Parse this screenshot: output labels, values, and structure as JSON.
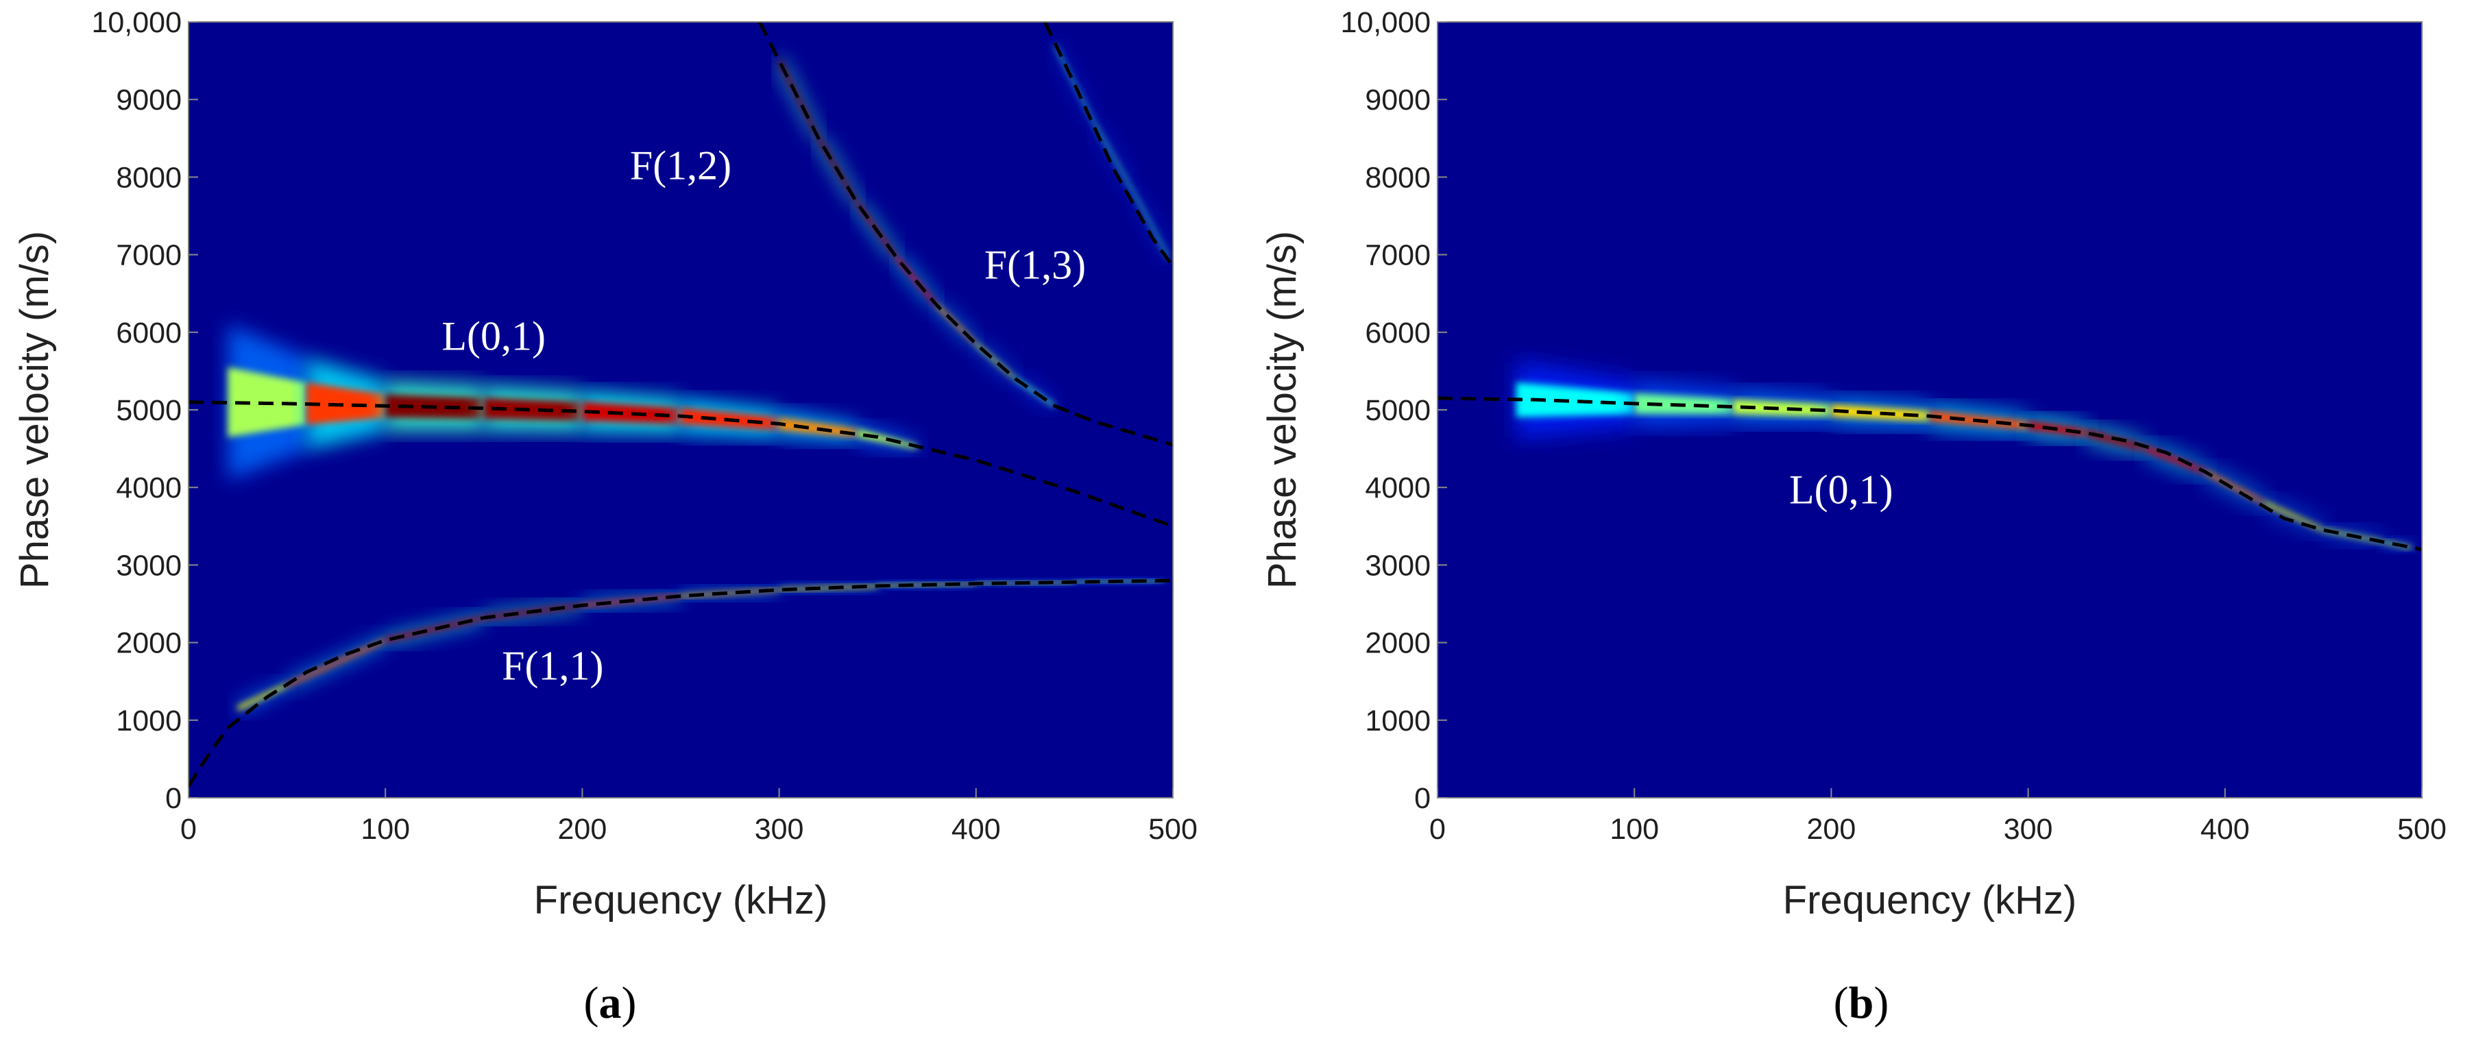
{
  "figure": {
    "colors": {
      "background": "#00008f",
      "dispersion_curve": "#000000",
      "colormap": [
        "#00008f",
        "#0000ff",
        "#0080ff",
        "#00ffff",
        "#80ff80",
        "#ffff00",
        "#ff8000",
        "#ff0000",
        "#800000"
      ]
    }
  },
  "chart_data": [
    {
      "type": "heatmap",
      "panel_caption": "(a)",
      "caption_letter": "a",
      "xlabel": "Frequency (kHz)",
      "ylabel": "Phase velocity (m/s)",
      "xlim": [
        0,
        500
      ],
      "ylim": [
        0,
        10000
      ],
      "xticks": [
        0,
        100,
        200,
        300,
        400,
        500
      ],
      "yticks": [
        0,
        1000,
        2000,
        3000,
        4000,
        5000,
        6000,
        7000,
        8000,
        9000,
        10000
      ],
      "xtick_labels": [
        "0",
        "100",
        "200",
        "300",
        "400",
        "500"
      ],
      "ytick_labels": [
        "0",
        "1000",
        "2000",
        "3000",
        "4000",
        "5000",
        "6000",
        "7000",
        "8000",
        "9000",
        "10,000"
      ],
      "mode_labels": [
        {
          "text": "L(0,1)",
          "freq": 155,
          "velocity": 5950
        },
        {
          "text": "F(1,1)",
          "freq": 185,
          "velocity": 1700
        },
        {
          "text": "F(1,2)",
          "freq": 250,
          "velocity": 8150
        },
        {
          "text": "F(1,3)",
          "freq": 430,
          "velocity": 6870
        }
      ],
      "series": [
        {
          "name": "L(0,1)",
          "x": [
            0,
            50,
            100,
            150,
            200,
            250,
            300,
            350,
            400,
            450,
            500
          ],
          "y": [
            5100,
            5080,
            5050,
            5020,
            4980,
            4920,
            4820,
            4650,
            4350,
            3950,
            3500
          ]
        },
        {
          "name": "F(1,1)",
          "x": [
            0,
            10,
            20,
            40,
            60,
            80,
            100,
            150,
            200,
            250,
            300,
            350,
            400,
            450,
            500
          ],
          "y": [
            150,
            550,
            900,
            1300,
            1620,
            1850,
            2030,
            2320,
            2480,
            2600,
            2680,
            2730,
            2760,
            2780,
            2800
          ]
        },
        {
          "name": "F(1,2)",
          "x": [
            290,
            300,
            320,
            340,
            360,
            380,
            400,
            420,
            440,
            460
          ],
          "y": [
            10000,
            9500,
            8500,
            7650,
            6950,
            6350,
            5850,
            5400,
            5050,
            4850
          ]
        },
        {
          "name": "F(1,3)",
          "x": [
            435,
            450,
            470,
            490,
            500
          ],
          "y": [
            10000,
            9200,
            8100,
            7200,
            6850
          ]
        },
        {
          "name": "F(1,3) lower",
          "x": [
            440,
            460,
            480,
            500
          ],
          "y": [
            5050,
            4850,
            4700,
            4550
          ]
        }
      ],
      "energy_bands": [
        {
          "mode": "L(0,1)",
          "x": [
            20,
            60,
            100,
            150,
            200,
            250,
            300,
            340,
            370
          ],
          "y": [
            5100,
            5080,
            5050,
            5020,
            4980,
            4920,
            4820,
            4700,
            4520
          ],
          "intensity": [
            0.3,
            0.55,
            1.0,
            1.0,
            0.95,
            0.85,
            0.75,
            0.6,
            0.3
          ],
          "halfwidth": [
            1000,
            600,
            330,
            300,
            270,
            230,
            180,
            120,
            60
          ]
        },
        {
          "mode": "F(1,1)",
          "x": [
            25,
            50,
            100,
            150,
            200,
            250,
            300,
            350,
            400,
            450,
            495
          ],
          "y": [
            1150,
            1450,
            2030,
            2320,
            2480,
            2600,
            2680,
            2730,
            2760,
            2780,
            2800
          ],
          "intensity": [
            0.45,
            0.6,
            0.85,
            1.0,
            0.9,
            0.65,
            0.55,
            0.5,
            0.45,
            0.4,
            0.35
          ],
          "halfwidth": [
            70,
            60,
            60,
            55,
            50,
            45,
            40,
            40,
            35,
            35,
            35
          ]
        },
        {
          "mode": "F(1,2)",
          "x": [
            300,
            320,
            340,
            360,
            380,
            400,
            420,
            440
          ],
          "y": [
            9500,
            8500,
            7650,
            6950,
            6350,
            5850,
            5400,
            5050
          ],
          "intensity": [
            1.0,
            1.0,
            1.0,
            0.9,
            0.75,
            0.55,
            0.4,
            0.25
          ],
          "halfwidth": [
            110,
            100,
            90,
            80,
            70,
            60,
            55,
            50
          ]
        },
        {
          "mode": "F(1,3)",
          "x": [
            440,
            460,
            480,
            498
          ],
          "y": [
            9700,
            8700,
            7800,
            6950
          ],
          "intensity": [
            0.3,
            0.3,
            0.3,
            0.3
          ],
          "halfwidth": [
            60,
            60,
            60,
            60
          ]
        }
      ]
    },
    {
      "type": "heatmap",
      "panel_caption": "(b)",
      "caption_letter": "b",
      "xlabel": "Frequency (kHz)",
      "ylabel": "Phase velocity (m/s)",
      "xlim": [
        0,
        500
      ],
      "ylim": [
        0,
        10000
      ],
      "xticks": [
        0,
        100,
        200,
        300,
        400,
        500
      ],
      "yticks": [
        0,
        1000,
        2000,
        3000,
        4000,
        5000,
        6000,
        7000,
        8000,
        9000,
        10000
      ],
      "xtick_labels": [
        "0",
        "100",
        "200",
        "300",
        "400",
        "500"
      ],
      "ytick_labels": [
        "0",
        "1000",
        "2000",
        "3000",
        "4000",
        "5000",
        "6000",
        "7000",
        "8000",
        "9000",
        "10,000"
      ],
      "mode_labels": [
        {
          "text": "L(0,1)",
          "freq": 205,
          "velocity": 3970
        }
      ],
      "series": [
        {
          "name": "L(0,1)",
          "x": [
            0,
            50,
            100,
            150,
            200,
            250,
            300,
            330,
            350,
            370,
            390,
            410,
            430,
            450,
            470,
            500
          ],
          "y": [
            5150,
            5130,
            5080,
            5040,
            4990,
            4920,
            4800,
            4700,
            4600,
            4450,
            4200,
            3900,
            3600,
            3450,
            3350,
            3200
          ]
        }
      ],
      "energy_bands": [
        {
          "mode": "L(0,1)",
          "x": [
            40,
            100,
            150,
            200,
            250,
            300,
            330,
            360,
            390,
            420,
            450,
            480,
            495
          ],
          "y": [
            5130,
            5080,
            5040,
            4990,
            4920,
            4800,
            4700,
            4500,
            4200,
            3800,
            3450,
            3300,
            3220
          ],
          "intensity": [
            0.15,
            0.3,
            0.4,
            0.5,
            0.65,
            0.85,
            0.95,
            0.95,
            0.8,
            0.6,
            0.45,
            0.45,
            0.4
          ],
          "halfwidth": [
            500,
            300,
            220,
            180,
            150,
            120,
            100,
            80,
            70,
            60,
            50,
            45,
            45
          ]
        }
      ]
    }
  ]
}
